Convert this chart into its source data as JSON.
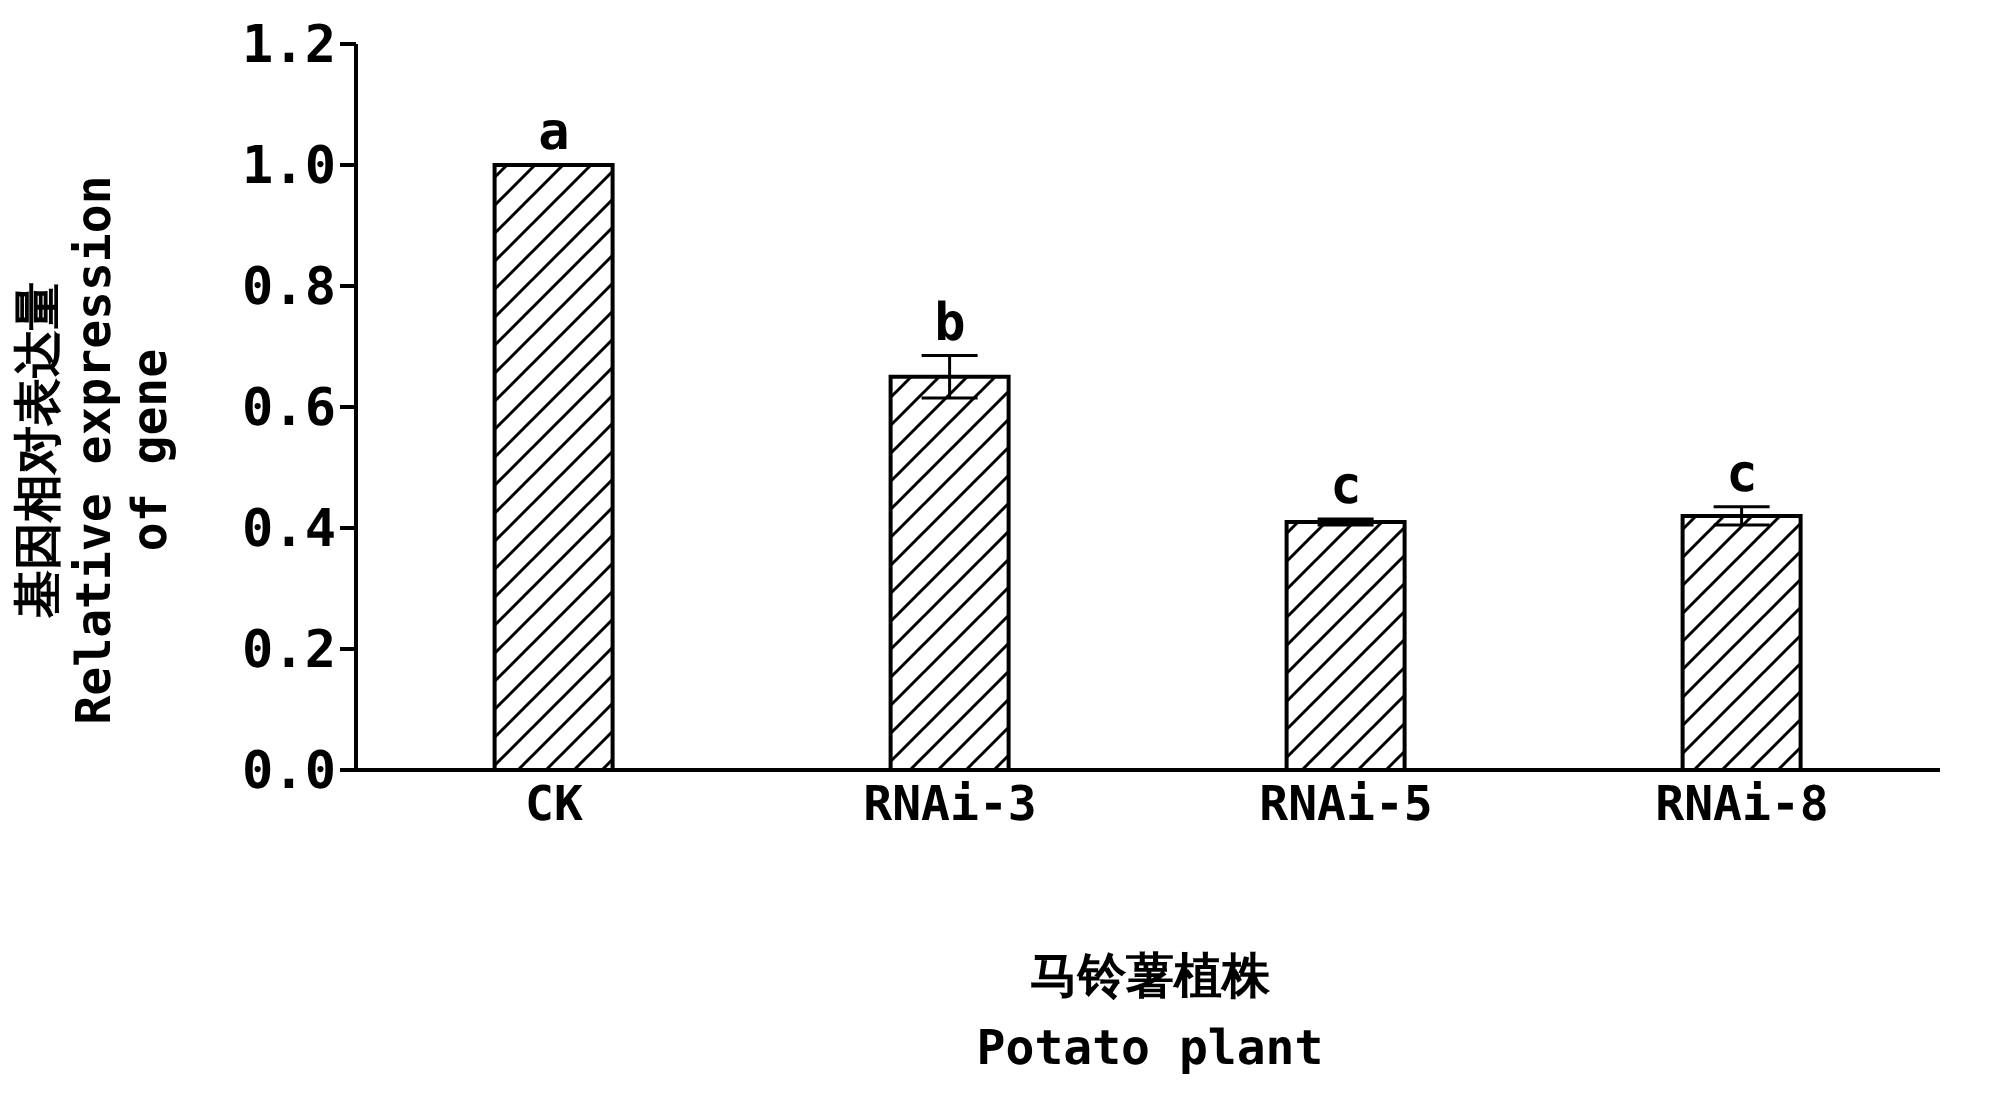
{
  "chart_data": {
    "type": "bar",
    "xlabel": "马铃薯植株\nPotato plant",
    "ylabel": "基因相对表达量\nRelative expression\nof gene",
    "categories": [
      "CK",
      "RNAi-3",
      "RNAi-5",
      "RNAi-8"
    ],
    "values": [
      1.0,
      0.65,
      0.41,
      0.42
    ],
    "errors": [
      null,
      0.035,
      0.005,
      0.015
    ],
    "color": "#000000",
    "ylim": [
      0,
      1.2
    ],
    "yticks": [
      {
        "value": 0,
        "label": "0.0"
      },
      {
        "value": 0.2,
        "label": "0.2"
      },
      {
        "value": 0.4,
        "label": "0.4"
      },
      {
        "value": 0.6,
        "label": "0.6"
      },
      {
        "value": 0.8,
        "label": "0.8"
      },
      {
        "value": 1.0,
        "label": "1.0"
      },
      {
        "value": 1.2,
        "label": "1.2"
      }
    ],
    "grid": false,
    "legend": false,
    "annotations": [
      {
        "text": "a",
        "x": "CK",
        "y": 1.0
      },
      {
        "text": "b",
        "x": "RNAi-3",
        "y": 0.685
      },
      {
        "text": "c",
        "x": "RNAi-5",
        "y": 0.415
      },
      {
        "text": "c",
        "x": "RNAi-8",
        "y": 0.435
      }
    ]
  }
}
